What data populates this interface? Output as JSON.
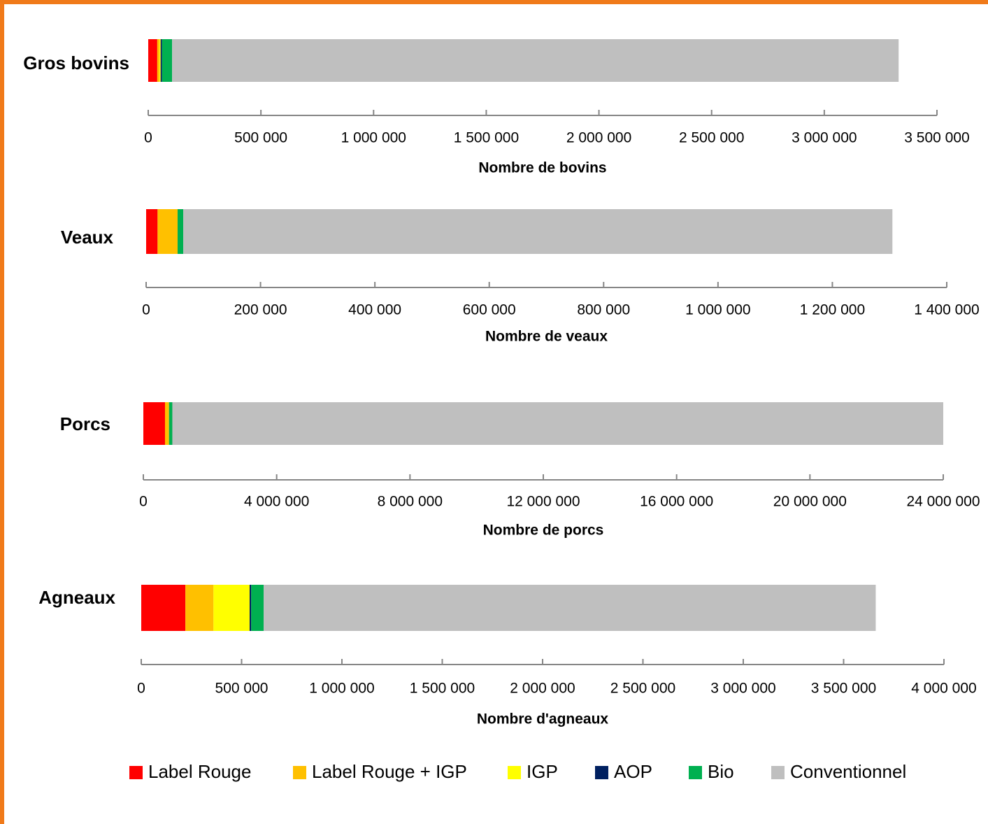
{
  "colors": {
    "border": "#f07a1a",
    "axis": "#868686",
    "Label Rouge": "#ff0000",
    "Label Rouge + IGP": "#ffc000",
    "IGP": "#ffff00",
    "AOP": "#002060",
    "Bio": "#00b050",
    "Conventionnel": "#bfbfbf"
  },
  "legend": {
    "items": [
      "Label Rouge",
      "Label Rouge + IGP",
      "IGP",
      "AOP",
      "Bio",
      "Conventionnel"
    ],
    "placement": "bottom"
  },
  "chart_data": [
    {
      "type": "bar",
      "orientation": "horizontal",
      "stacked": true,
      "category": "Gros bovins",
      "xlabel": "Nombre de bovins",
      "xlim": [
        0,
        3500000
      ],
      "ticks": [
        0,
        500000,
        1000000,
        1500000,
        2000000,
        2500000,
        3000000,
        3500000
      ],
      "tick_labels": [
        "0",
        "500 000",
        "1 000 000",
        "1 500 000",
        "2 000 000",
        "2 500 000",
        "3 000 000",
        "3 500 000"
      ],
      "series": [
        {
          "name": "Label Rouge",
          "value": 40000
        },
        {
          "name": "Label Rouge + IGP",
          "value": 10000
        },
        {
          "name": "IGP",
          "value": 5000
        },
        {
          "name": "AOP",
          "value": 6000
        },
        {
          "name": "Bio",
          "value": 45000
        },
        {
          "name": "Conventionnel",
          "value": 3224000
        }
      ]
    },
    {
      "type": "bar",
      "orientation": "horizontal",
      "stacked": true,
      "category": "Veaux",
      "xlabel": "Nombre de veaux",
      "xlim": [
        0,
        1400000
      ],
      "ticks": [
        0,
        200000,
        400000,
        600000,
        800000,
        1000000,
        1200000,
        1400000
      ],
      "tick_labels": [
        "0",
        "200 000",
        "400 000",
        "600 000",
        "800 000",
        "1 000 000",
        "1 200 000",
        "1 400 000"
      ],
      "series": [
        {
          "name": "Label Rouge",
          "value": 20000
        },
        {
          "name": "Label Rouge + IGP",
          "value": 35000
        },
        {
          "name": "IGP",
          "value": 0
        },
        {
          "name": "AOP",
          "value": 0
        },
        {
          "name": "Bio",
          "value": 10000
        },
        {
          "name": "Conventionnel",
          "value": 1240000
        }
      ]
    },
    {
      "type": "bar",
      "orientation": "horizontal",
      "stacked": true,
      "category": "Porcs",
      "xlabel": "Nombre de porcs",
      "xlim": [
        0,
        24000000
      ],
      "ticks": [
        0,
        4000000,
        8000000,
        12000000,
        16000000,
        20000000,
        24000000
      ],
      "tick_labels": [
        "0",
        "4 000 000",
        "8 000 000",
        "12 000 000",
        "16 000 000",
        "20 000 000",
        "24 000 000"
      ],
      "series": [
        {
          "name": "Label Rouge",
          "value": 650000
        },
        {
          "name": "Label Rouge + IGP",
          "value": 120000
        },
        {
          "name": "IGP",
          "value": 0
        },
        {
          "name": "AOP",
          "value": 0
        },
        {
          "name": "Bio",
          "value": 100000
        },
        {
          "name": "Conventionnel",
          "value": 23130000
        }
      ]
    },
    {
      "type": "bar",
      "orientation": "horizontal",
      "stacked": true,
      "category": "Agneaux",
      "xlabel": "Nombre d'agneaux",
      "xlim": [
        0,
        4000000
      ],
      "ticks": [
        0,
        500000,
        1000000,
        1500000,
        2000000,
        2500000,
        3000000,
        3500000,
        4000000
      ],
      "tick_labels": [
        "0",
        "500 000",
        "1 000 000",
        "1 500 000",
        "2 000 000",
        "2 500 000",
        "3 000 000",
        "3 500 000",
        "4 000 000"
      ],
      "series": [
        {
          "name": "Label Rouge",
          "value": 220000
        },
        {
          "name": "Label Rouge + IGP",
          "value": 140000
        },
        {
          "name": "IGP",
          "value": 180000
        },
        {
          "name": "AOP",
          "value": 8000
        },
        {
          "name": "Bio",
          "value": 62000
        },
        {
          "name": "Conventionnel",
          "value": 3050000
        }
      ]
    }
  ]
}
